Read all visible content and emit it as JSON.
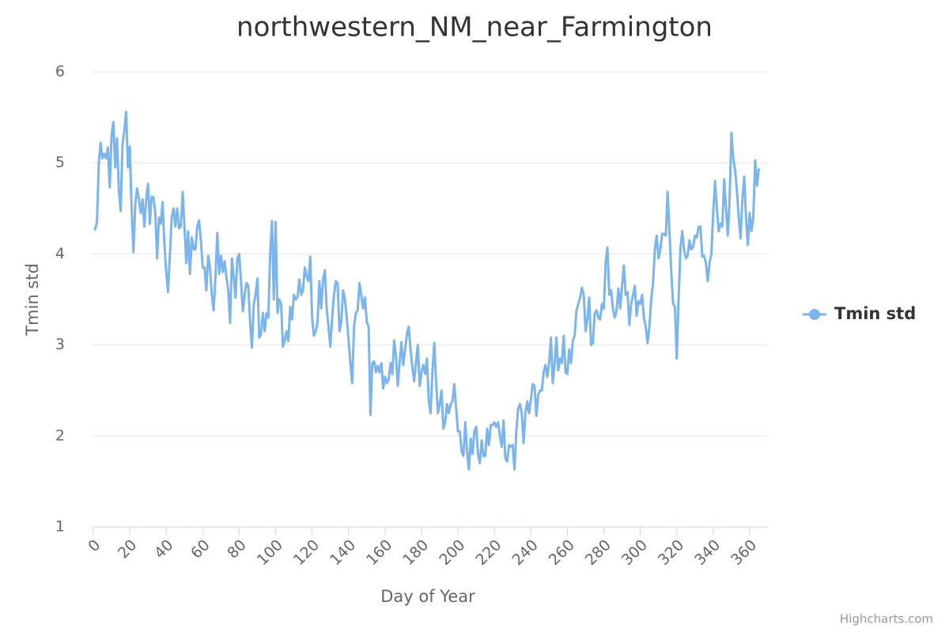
{
  "chart_data": {
    "type": "line",
    "title": "northwestern_NM_near_Farmington",
    "x_label": "Day of Year",
    "y_label": "Tmin std",
    "credits": "Highcharts.com",
    "legend": "right",
    "grid": true,
    "xlim": [
      0,
      370
    ],
    "xticks": [
      0,
      20,
      40,
      60,
      80,
      100,
      120,
      140,
      160,
      180,
      200,
      220,
      240,
      260,
      280,
      300,
      320,
      340,
      360
    ],
    "ylim": [
      1,
      6
    ],
    "yticks": [
      1,
      2,
      3,
      4,
      5,
      6
    ],
    "x": [
      1,
      2,
      3,
      4,
      5,
      6,
      7,
      8,
      9,
      10,
      11,
      12,
      13,
      14,
      15,
      16,
      17,
      18,
      19,
      20,
      21,
      22,
      23,
      24,
      25,
      26,
      27,
      28,
      29,
      30,
      31,
      32,
      33,
      34,
      35,
      36,
      37,
      38,
      39,
      40,
      41,
      42,
      43,
      44,
      45,
      46,
      47,
      48,
      49,
      50,
      51,
      52,
      53,
      54,
      55,
      56,
      57,
      58,
      59,
      60,
      61,
      62,
      63,
      64,
      65,
      66,
      67,
      68,
      69,
      70,
      71,
      72,
      73,
      74,
      75,
      76,
      77,
      78,
      79,
      80,
      81,
      82,
      83,
      84,
      85,
      86,
      87,
      88,
      89,
      90,
      91,
      92,
      93,
      94,
      95,
      96,
      97,
      98,
      99,
      100,
      101,
      102,
      103,
      104,
      105,
      106,
      107,
      108,
      109,
      110,
      111,
      112,
      113,
      114,
      115,
      116,
      117,
      118,
      119,
      120,
      121,
      122,
      123,
      124,
      125,
      126,
      127,
      128,
      129,
      130,
      131,
      132,
      133,
      134,
      135,
      136,
      137,
      138,
      139,
      140,
      141,
      142,
      143,
      144,
      145,
      146,
      147,
      148,
      149,
      150,
      151,
      152,
      153,
      154,
      155,
      156,
      157,
      158,
      159,
      160,
      161,
      162,
      163,
      164,
      165,
      166,
      167,
      168,
      169,
      170,
      171,
      172,
      173,
      174,
      175,
      176,
      177,
      178,
      179,
      180,
      181,
      182,
      183,
      184,
      185,
      186,
      187,
      188,
      189,
      190,
      191,
      192,
      193,
      194,
      195,
      196,
      197,
      198,
      199,
      200,
      201,
      202,
      203,
      204,
      205,
      206,
      207,
      208,
      209,
      210,
      211,
      212,
      213,
      214,
      215,
      216,
      217,
      218,
      219,
      220,
      221,
      222,
      223,
      224,
      225,
      226,
      227,
      228,
      229,
      230,
      231,
      232,
      233,
      234,
      235,
      236,
      237,
      238,
      239,
      240,
      241,
      242,
      243,
      244,
      245,
      246,
      247,
      248,
      249,
      250,
      251,
      252,
      253,
      254,
      255,
      256,
      257,
      258,
      259,
      260,
      261,
      262,
      263,
      264,
      265,
      266,
      267,
      268,
      269,
      270,
      271,
      272,
      273,
      274,
      275,
      276,
      277,
      278,
      279,
      280,
      281,
      282,
      283,
      284,
      285,
      286,
      287,
      288,
      289,
      290,
      291,
      292,
      293,
      294,
      295,
      296,
      297,
      298,
      299,
      300,
      301,
      302,
      303,
      304,
      305,
      306,
      307,
      308,
      309,
      310,
      311,
      312,
      313,
      314,
      315,
      316,
      317,
      318,
      319,
      320,
      321,
      322,
      323,
      324,
      325,
      326,
      327,
      328,
      329,
      330,
      331,
      332,
      333,
      334,
      335,
      336,
      337,
      338,
      339,
      340,
      341,
      342,
      343,
      344,
      345,
      346,
      347,
      348,
      349,
      350,
      351,
      352,
      353,
      354,
      355,
      356,
      357,
      358,
      359,
      360,
      361,
      362,
      363,
      364,
      365
    ],
    "series": [
      {
        "name": "Tmin std",
        "color": "#7cb5ec",
        "values": [
          4.27,
          4.35,
          5.0,
          5.22,
          5.05,
          5.1,
          5.05,
          5.17,
          4.73,
          5.3,
          5.45,
          4.95,
          5.27,
          4.7,
          4.47,
          5.2,
          5.35,
          5.56,
          4.95,
          5.18,
          4.5,
          4.02,
          4.55,
          4.72,
          4.6,
          4.45,
          4.6,
          4.3,
          4.6,
          4.77,
          4.33,
          4.63,
          4.62,
          4.45,
          3.95,
          4.4,
          4.33,
          4.57,
          4.1,
          3.8,
          3.58,
          4.0,
          4.4,
          4.5,
          4.3,
          4.5,
          4.28,
          4.3,
          4.68,
          4.3,
          3.9,
          4.25,
          3.78,
          4.18,
          4.05,
          4.05,
          4.3,
          4.37,
          4.15,
          3.85,
          3.85,
          3.6,
          3.98,
          3.85,
          3.55,
          3.38,
          3.75,
          4.23,
          3.78,
          3.98,
          3.8,
          3.92,
          3.75,
          3.6,
          3.24,
          3.95,
          3.75,
          3.52,
          3.95,
          4.0,
          3.7,
          3.37,
          3.55,
          3.68,
          3.65,
          3.25,
          2.97,
          3.45,
          3.55,
          3.73,
          3.08,
          3.12,
          3.35,
          3.15,
          3.35,
          3.3,
          4.0,
          4.36,
          3.5,
          4.35,
          3.35,
          3.5,
          3.45,
          2.98,
          3.05,
          3.15,
          3.04,
          3.42,
          3.28,
          3.55,
          3.5,
          3.52,
          3.72,
          3.55,
          3.6,
          3.85,
          3.75,
          3.7,
          3.97,
          3.3,
          3.1,
          3.15,
          3.25,
          3.7,
          3.4,
          3.72,
          3.82,
          3.4,
          3.2,
          2.98,
          3.3,
          3.55,
          3.7,
          3.68,
          3.15,
          3.25,
          3.6,
          3.5,
          3.3,
          3.05,
          2.8,
          2.58,
          3.2,
          3.35,
          3.38,
          3.68,
          3.55,
          3.4,
          3.52,
          3.25,
          3.2,
          2.23,
          2.8,
          2.82,
          2.7,
          2.77,
          2.7,
          2.8,
          2.52,
          2.65,
          2.58,
          2.62,
          2.8,
          2.68,
          3.05,
          2.88,
          2.55,
          2.8,
          3.03,
          2.78,
          2.95,
          3.12,
          3.2,
          2.95,
          2.75,
          2.6,
          2.82,
          3.0,
          2.55,
          2.7,
          2.78,
          2.68,
          2.85,
          2.38,
          2.25,
          2.7,
          3.02,
          2.6,
          2.25,
          2.35,
          2.5,
          2.08,
          2.15,
          2.35,
          2.25,
          2.35,
          2.38,
          2.57,
          2.3,
          2.05,
          2.05,
          1.83,
          1.78,
          2.15,
          1.83,
          1.63,
          1.97,
          1.8,
          2.05,
          2.1,
          1.8,
          1.7,
          1.95,
          1.78,
          1.78,
          2.08,
          1.9,
          2.12,
          2.12,
          2.15,
          2.1,
          2.15,
          2.0,
          1.88,
          2.17,
          1.75,
          1.72,
          1.9,
          1.88,
          1.9,
          1.63,
          2.05,
          2.3,
          2.35,
          2.25,
          1.92,
          2.25,
          2.38,
          2.25,
          2.4,
          2.57,
          2.55,
          2.22,
          2.45,
          2.5,
          2.5,
          2.7,
          2.78,
          2.65,
          2.8,
          3.08,
          2.58,
          2.78,
          3.08,
          2.72,
          2.85,
          2.8,
          3.1,
          2.7,
          2.68,
          2.95,
          2.8,
          3.05,
          3.1,
          3.38,
          3.45,
          3.52,
          3.63,
          3.55,
          3.15,
          3.28,
          3.52,
          3.0,
          3.02,
          3.35,
          3.38,
          3.3,
          3.28,
          3.45,
          3.4,
          3.9,
          4.07,
          3.55,
          3.6,
          3.4,
          3.3,
          3.38,
          3.62,
          3.4,
          3.65,
          3.87,
          3.55,
          3.58,
          3.22,
          3.45,
          3.55,
          3.65,
          3.32,
          3.48,
          3.45,
          3.55,
          3.3,
          3.2,
          3.02,
          3.2,
          3.5,
          3.68,
          4.05,
          4.2,
          3.95,
          4.05,
          4.22,
          4.22,
          4.2,
          4.68,
          4.25,
          3.8,
          3.45,
          3.42,
          2.85,
          3.5,
          4.05,
          4.25,
          4.05,
          3.95,
          3.98,
          4.15,
          4.05,
          4.08,
          4.2,
          4.18,
          4.3,
          4.3,
          3.97,
          3.98,
          3.9,
          3.7,
          3.9,
          4.0,
          4.45,
          4.8,
          4.5,
          4.25,
          4.33,
          4.3,
          4.82,
          4.5,
          4.2,
          4.6,
          5.33,
          5.05,
          4.92,
          4.7,
          4.4,
          4.17,
          4.6,
          4.85,
          4.4,
          4.1,
          4.45,
          4.25,
          4.4,
          5.03,
          4.75,
          4.93
        ]
      }
    ]
  }
}
